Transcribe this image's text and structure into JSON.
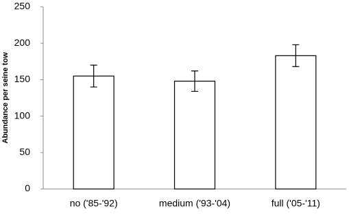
{
  "chart_data": {
    "type": "bar",
    "y_label": "Abundance per seine tow",
    "categories": [
      "no ('85-'92)",
      "medium ('93-'04)",
      "full ('05-'11)"
    ],
    "values": [
      155,
      148,
      183
    ],
    "errors": [
      15,
      14,
      15
    ],
    "color": "#ffffff",
    "edge_color": "#000000",
    "ylim": [
      0,
      250
    ],
    "yticks": [
      0,
      50,
      100,
      150,
      200,
      250
    ],
    "grid": false
  }
}
